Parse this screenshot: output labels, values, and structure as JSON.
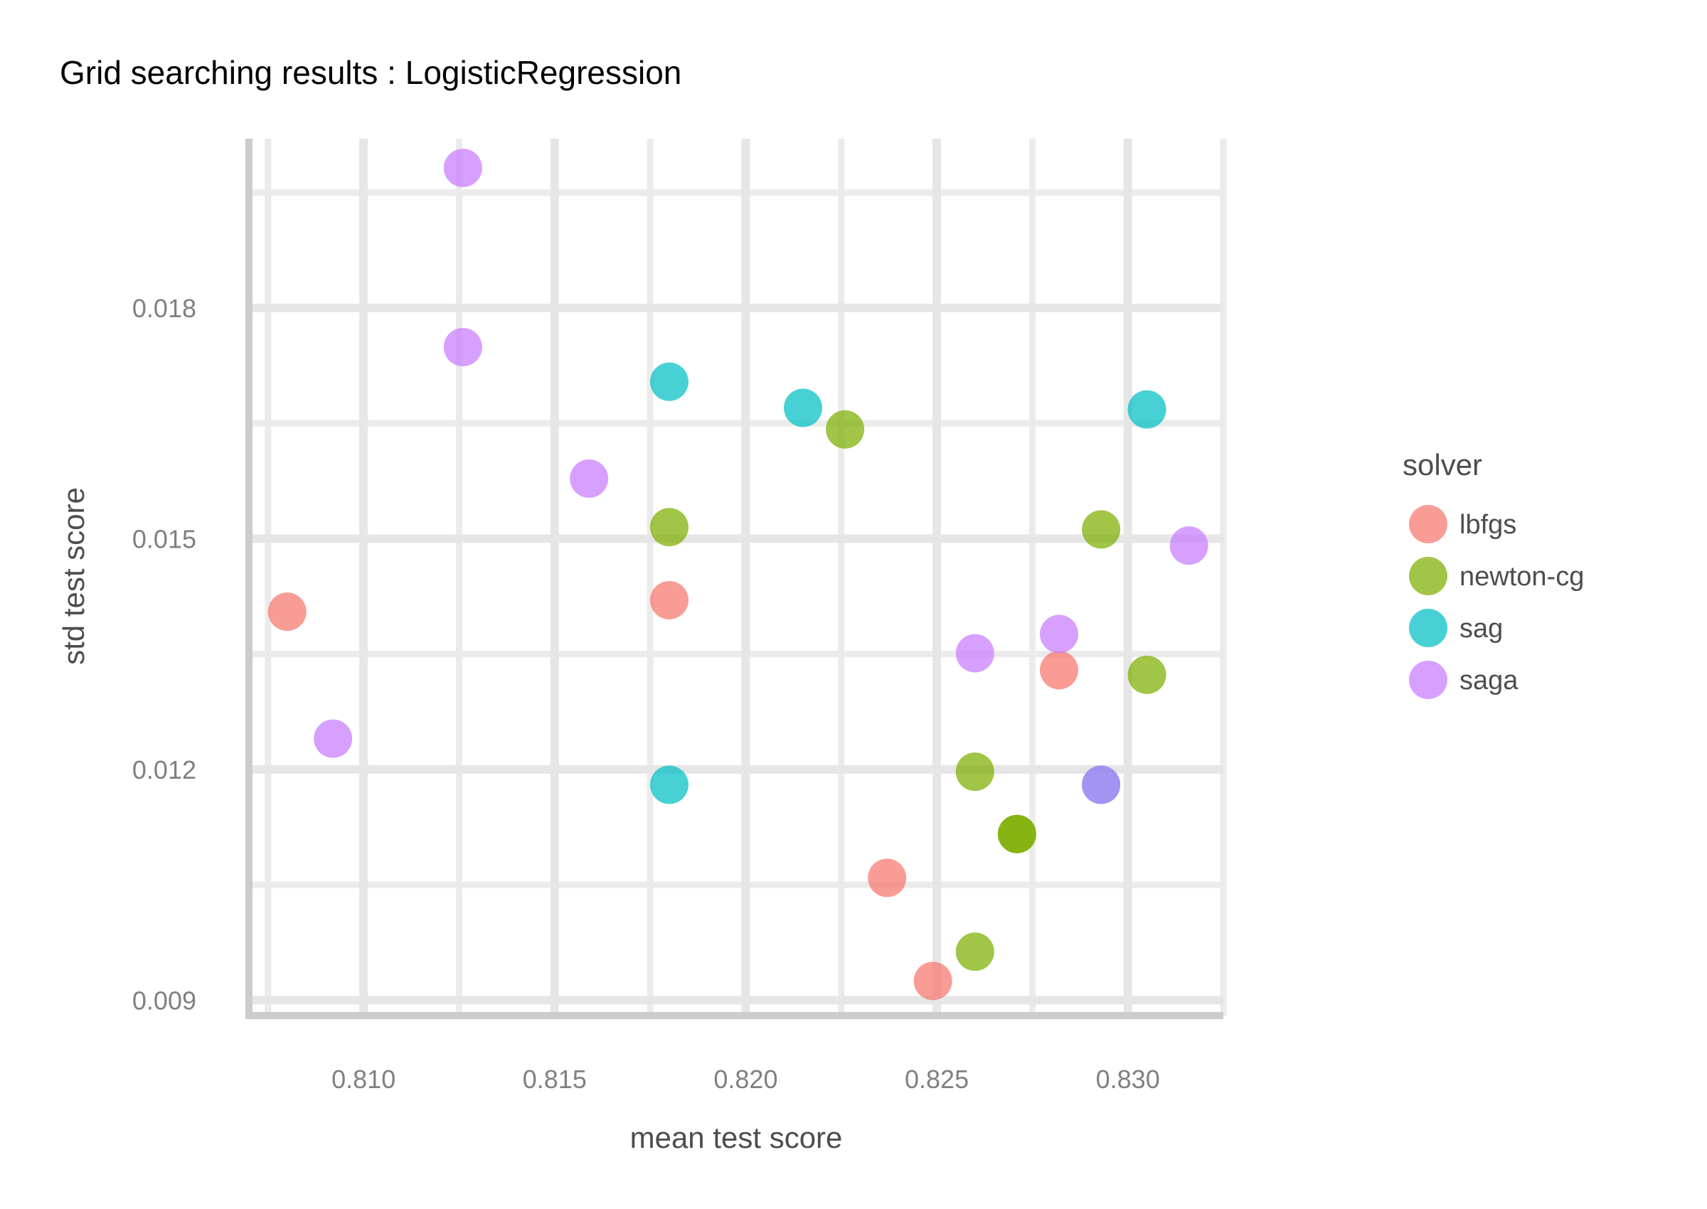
{
  "chart_data": {
    "type": "scatter",
    "title": "Grid searching results :  LogisticRegression",
    "xlabel": "mean test score",
    "ylabel": "std test score",
    "xlim": [
      0.807,
      0.8325
    ],
    "ylim": [
      0.0088,
      0.0202
    ],
    "x_ticks": [
      0.81,
      0.815,
      0.82,
      0.825,
      0.83
    ],
    "x_tick_labels": [
      "0.810",
      "0.815",
      "0.820",
      "0.825",
      "0.830"
    ],
    "y_ticks": [
      0.009,
      0.012,
      0.015,
      0.018
    ],
    "y_tick_labels": [
      "0.009",
      "0.012",
      "0.015",
      "0.018"
    ],
    "grid": true,
    "legend": {
      "title": "solver",
      "position": "right"
    },
    "series": [
      {
        "name": "lbfgs",
        "color": "#F8766D",
        "points": [
          [
            0.808,
            0.01405
          ],
          [
            0.818,
            0.0142
          ],
          [
            0.8282,
            0.01329
          ],
          [
            0.8237,
            0.01059
          ],
          [
            0.8249,
            0.00925
          ]
        ]
      },
      {
        "name": "newton-cg",
        "color": "#7CAE00",
        "points": [
          [
            0.8226,
            0.01642
          ],
          [
            0.818,
            0.01515
          ],
          [
            0.8293,
            0.01512
          ],
          [
            0.8305,
            0.01323
          ],
          [
            0.826,
            0.01197
          ],
          [
            0.8271,
            0.01116
          ],
          [
            0.8271,
            0.01116
          ],
          [
            0.826,
            0.00963
          ]
        ]
      },
      {
        "name": "sag",
        "color": "#00BFC4",
        "points": [
          [
            0.818,
            0.01704
          ],
          [
            0.8215,
            0.0167
          ],
          [
            0.8305,
            0.01668
          ],
          [
            0.818,
            0.0118
          ],
          [
            0.8293,
            0.0118
          ]
        ]
      },
      {
        "name": "saga",
        "color": "#C77CFF",
        "points": [
          [
            0.8126,
            0.01982
          ],
          [
            0.8126,
            0.01749
          ],
          [
            0.8159,
            0.01578
          ],
          [
            0.8316,
            0.01491
          ],
          [
            0.8282,
            0.01376
          ],
          [
            0.826,
            0.01351
          ],
          [
            0.8092,
            0.0124
          ],
          [
            0.8293,
            0.0118
          ]
        ]
      }
    ]
  }
}
